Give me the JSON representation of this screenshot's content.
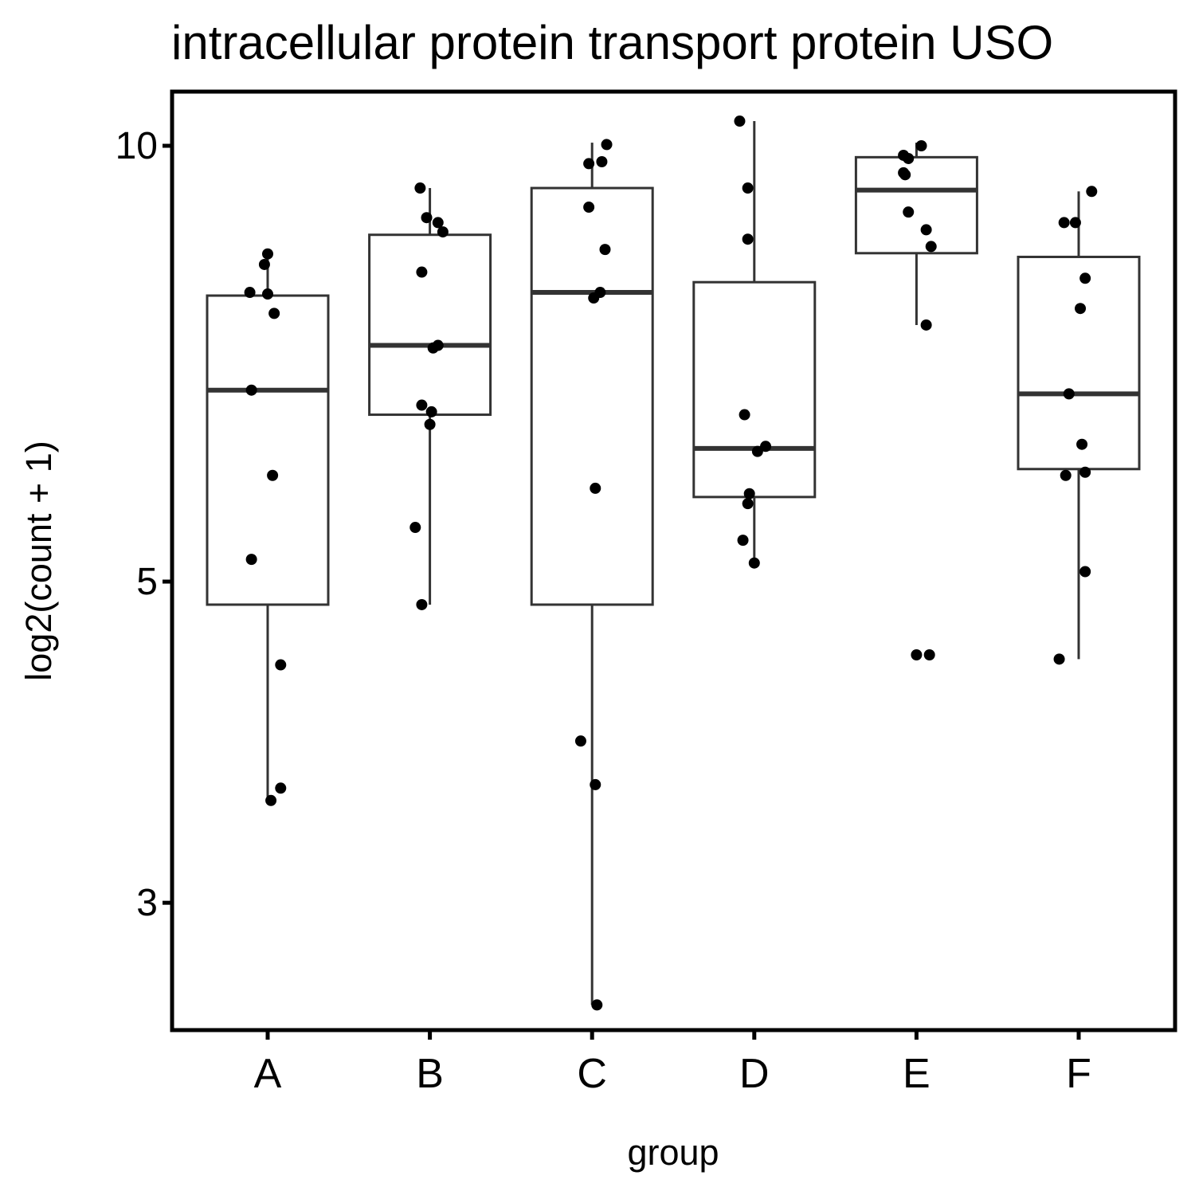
{
  "chart_data": {
    "type": "box",
    "title": "intracellular protein transport protein USO",
    "xlabel": "group",
    "ylabel": "log2(count + 1)",
    "y_scale": "log",
    "ylim": [
      2.45,
      10.9
    ],
    "yticks": [
      3,
      5,
      10
    ],
    "ytick_labels": [
      "3",
      "5",
      "10"
    ],
    "categories": [
      "A",
      "B",
      "C",
      "D",
      "E",
      "F"
    ],
    "grid": false,
    "legend": "none",
    "colors": {
      "box": "#333333",
      "points": "#000000",
      "frame": "#000000"
    },
    "boxes": [
      {
        "group": "A",
        "whisker_low": 3.55,
        "q1": 4.82,
        "median": 6.78,
        "q3": 7.88,
        "whisker_high": 8.42
      },
      {
        "group": "B",
        "whisker_low": 4.82,
        "q1": 6.52,
        "median": 7.28,
        "q3": 8.68,
        "whisker_high": 9.35
      },
      {
        "group": "C",
        "whisker_low": 2.55,
        "q1": 4.82,
        "median": 7.92,
        "q3": 9.35,
        "whisker_high": 10.05
      },
      {
        "group": "D",
        "whisker_low": 5.15,
        "q1": 5.72,
        "median": 6.18,
        "q3": 8.05,
        "whisker_high": 10.4
      },
      {
        "group": "E",
        "whisker_low": 7.52,
        "q1": 8.43,
        "median": 9.32,
        "q3": 9.82,
        "whisker_high": 10.05
      },
      {
        "group": "F",
        "whisker_low": 4.42,
        "q1": 5.98,
        "median": 6.74,
        "q3": 8.38,
        "whisker_high": 9.3
      }
    ],
    "points": [
      {
        "group": "A",
        "jitter": 0.0,
        "y": 8.42
      },
      {
        "group": "A",
        "jitter": -0.02,
        "y": 8.28
      },
      {
        "group": "A",
        "jitter": -0.11,
        "y": 7.92
      },
      {
        "group": "A",
        "jitter": 0.0,
        "y": 7.9
      },
      {
        "group": "A",
        "jitter": 0.04,
        "y": 7.66
      },
      {
        "group": "A",
        "jitter": -0.1,
        "y": 6.78
      },
      {
        "group": "A",
        "jitter": 0.03,
        "y": 5.92
      },
      {
        "group": "A",
        "jitter": -0.1,
        "y": 5.18
      },
      {
        "group": "A",
        "jitter": 0.08,
        "y": 4.38
      },
      {
        "group": "A",
        "jitter": 0.08,
        "y": 3.6
      },
      {
        "group": "A",
        "jitter": 0.02,
        "y": 3.53
      },
      {
        "group": "B",
        "jitter": -0.06,
        "y": 9.35
      },
      {
        "group": "B",
        "jitter": -0.02,
        "y": 8.92
      },
      {
        "group": "B",
        "jitter": 0.05,
        "y": 8.85
      },
      {
        "group": "B",
        "jitter": 0.08,
        "y": 8.72
      },
      {
        "group": "B",
        "jitter": -0.05,
        "y": 8.18
      },
      {
        "group": "B",
        "jitter": 0.05,
        "y": 7.28
      },
      {
        "group": "B",
        "jitter": 0.02,
        "y": 7.25
      },
      {
        "group": "B",
        "jitter": -0.05,
        "y": 6.62
      },
      {
        "group": "B",
        "jitter": 0.01,
        "y": 6.55
      },
      {
        "group": "B",
        "jitter": 0.0,
        "y": 6.42
      },
      {
        "group": "B",
        "jitter": -0.09,
        "y": 5.45
      },
      {
        "group": "B",
        "jitter": -0.05,
        "y": 4.82
      },
      {
        "group": "C",
        "jitter": 0.09,
        "y": 10.02
      },
      {
        "group": "C",
        "jitter": 0.06,
        "y": 9.75
      },
      {
        "group": "C",
        "jitter": -0.02,
        "y": 9.72
      },
      {
        "group": "C",
        "jitter": -0.02,
        "y": 9.07
      },
      {
        "group": "C",
        "jitter": 0.08,
        "y": 8.48
      },
      {
        "group": "C",
        "jitter": 0.05,
        "y": 7.92
      },
      {
        "group": "C",
        "jitter": 0.01,
        "y": 7.85
      },
      {
        "group": "C",
        "jitter": 0.02,
        "y": 5.8
      },
      {
        "group": "C",
        "jitter": -0.07,
        "y": 3.88
      },
      {
        "group": "C",
        "jitter": 0.02,
        "y": 3.62
      },
      {
        "group": "C",
        "jitter": 0.03,
        "y": 2.55
      },
      {
        "group": "D",
        "jitter": -0.09,
        "y": 10.4
      },
      {
        "group": "D",
        "jitter": -0.04,
        "y": 9.35
      },
      {
        "group": "D",
        "jitter": -0.04,
        "y": 8.62
      },
      {
        "group": "D",
        "jitter": -0.06,
        "y": 6.52
      },
      {
        "group": "D",
        "jitter": 0.07,
        "y": 6.2
      },
      {
        "group": "D",
        "jitter": 0.02,
        "y": 6.15
      },
      {
        "group": "D",
        "jitter": -0.03,
        "y": 5.75
      },
      {
        "group": "D",
        "jitter": -0.04,
        "y": 5.66
      },
      {
        "group": "D",
        "jitter": -0.07,
        "y": 5.34
      },
      {
        "group": "D",
        "jitter": 0.0,
        "y": 5.15
      },
      {
        "group": "E",
        "jitter": 0.03,
        "y": 10.0
      },
      {
        "group": "E",
        "jitter": -0.08,
        "y": 9.85
      },
      {
        "group": "E",
        "jitter": -0.05,
        "y": 9.8
      },
      {
        "group": "E",
        "jitter": -0.08,
        "y": 9.58
      },
      {
        "group": "E",
        "jitter": -0.07,
        "y": 9.55
      },
      {
        "group": "E",
        "jitter": -0.05,
        "y": 9.0
      },
      {
        "group": "E",
        "jitter": 0.06,
        "y": 8.75
      },
      {
        "group": "E",
        "jitter": 0.09,
        "y": 8.52
      },
      {
        "group": "E",
        "jitter": 0.06,
        "y": 7.52
      },
      {
        "group": "E",
        "jitter": 0.08,
        "y": 4.45
      },
      {
        "group": "E",
        "jitter": 0.0,
        "y": 4.45
      },
      {
        "group": "F",
        "jitter": 0.08,
        "y": 9.3
      },
      {
        "group": "F",
        "jitter": -0.09,
        "y": 8.85
      },
      {
        "group": "F",
        "jitter": -0.02,
        "y": 8.85
      },
      {
        "group": "F",
        "jitter": 0.04,
        "y": 8.1
      },
      {
        "group": "F",
        "jitter": 0.01,
        "y": 7.72
      },
      {
        "group": "F",
        "jitter": -0.06,
        "y": 6.74
      },
      {
        "group": "F",
        "jitter": 0.02,
        "y": 6.22
      },
      {
        "group": "F",
        "jitter": 0.04,
        "y": 5.95
      },
      {
        "group": "F",
        "jitter": -0.08,
        "y": 5.92
      },
      {
        "group": "F",
        "jitter": 0.04,
        "y": 5.08
      },
      {
        "group": "F",
        "jitter": -0.12,
        "y": 4.42
      }
    ]
  }
}
